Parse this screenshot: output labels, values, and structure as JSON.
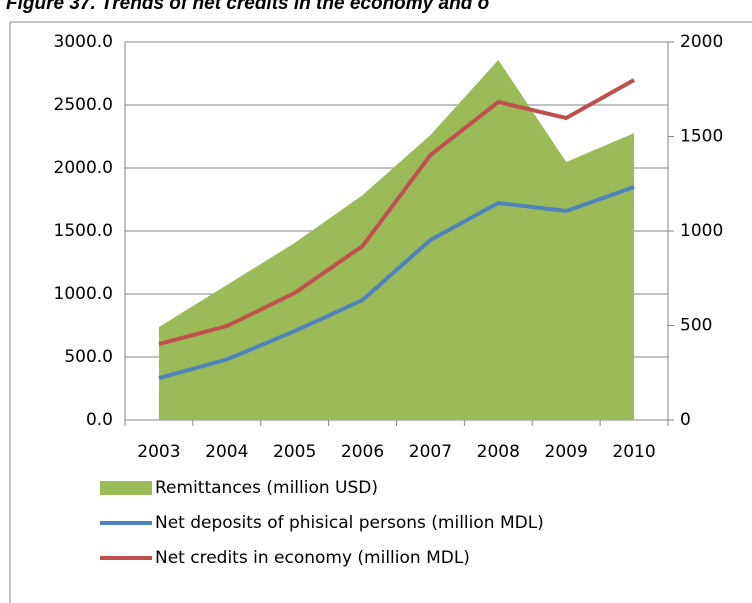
{
  "chart_data": {
    "type": "combo",
    "title": "Figure 37. Trends of net credits in the economy and o",
    "categories": [
      "2003",
      "2004",
      "2005",
      "2006",
      "2007",
      "2008",
      "2009",
      "2010"
    ],
    "series": [
      {
        "name": "Remittances (million USD)",
        "type": "area",
        "axis": "y2",
        "color": "#9bbb59",
        "values": [
          492,
          714,
          937,
          1190,
          1508,
          1905,
          1365,
          1518
        ]
      },
      {
        "name": "Net deposits of phisical persons  (million MDL)",
        "type": "line",
        "color": "#4f81bd",
        "values": [
          333,
          480,
          706,
          952,
          1429,
          1722,
          1659,
          1849
        ]
      },
      {
        "name": "Net credits in economy (million MDL)",
        "type": "line",
        "color": "#c0504d",
        "values": [
          603,
          746,
          1008,
          1381,
          2103,
          2524,
          2397,
          2698
        ]
      }
    ],
    "ylim": [
      0,
      3000
    ],
    "yticks": [
      {
        "value": 0,
        "label": "0.0"
      },
      {
        "value": 500,
        "label": "500.0"
      },
      {
        "value": 1000,
        "label": "1000.0"
      },
      {
        "value": 1500,
        "label": "1500.0"
      },
      {
        "value": 2000,
        "label": "2000.0"
      },
      {
        "value": 2500,
        "label": "2500.0"
      },
      {
        "value": 3000,
        "label": "3000.0"
      }
    ],
    "y2lim": [
      0,
      2000
    ],
    "y2ticks": [
      0,
      500,
      1000,
      1500,
      2000
    ],
    "grid": true
  }
}
